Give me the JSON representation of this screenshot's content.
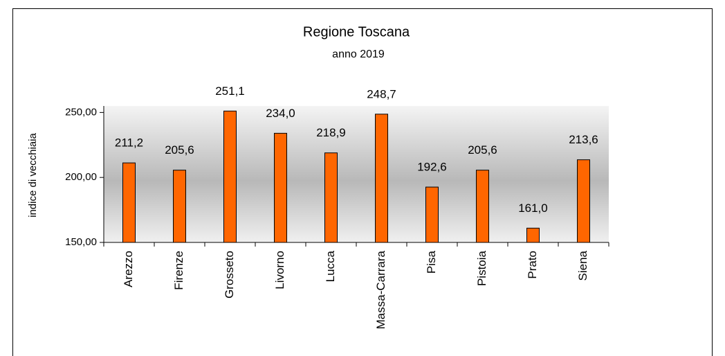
{
  "chart_data": {
    "type": "bar",
    "title": "Regione Toscana",
    "subtitle": "anno 2019",
    "y_label": "indice di vecchiaia",
    "categories": [
      "Arezzo",
      "Firenze",
      "Grosseto",
      "Livorno",
      "Lucca",
      "Massa-Carrara",
      "Pisa",
      "Pistoia",
      "Prato",
      "Siena"
    ],
    "values": [
      211.2,
      205.6,
      251.1,
      234.0,
      218.9,
      248.7,
      192.6,
      205.6,
      161.0,
      213.6
    ],
    "value_labels": [
      "211,2",
      "205,6",
      "251,1",
      "234,0",
      "218,9",
      "248,7",
      "192,6",
      "205,6",
      "161,0",
      "213,6"
    ],
    "color": "#ff6600",
    "ylim": [
      150,
      255
    ],
    "yticks": [
      {
        "value": 150,
        "label": "150,00"
      },
      {
        "value": 200,
        "label": "200,00"
      },
      {
        "value": 250,
        "label": "250,00"
      }
    ],
    "grid": false
  }
}
